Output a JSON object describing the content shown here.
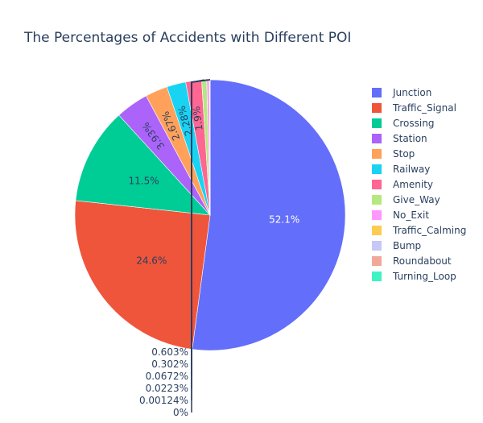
{
  "chart_data": {
    "type": "pie",
    "title": "The Percentages of Accidents with Different POI",
    "legend_position": "right",
    "categories": [
      "Junction",
      "Traffic_Signal",
      "Crossing",
      "Station",
      "Stop",
      "Railway",
      "Amenity",
      "Give_Way",
      "No_Exit",
      "Traffic_Calming",
      "Bump",
      "Roundabout",
      "Turning_Loop"
    ],
    "values": [
      52.1,
      24.6,
      11.5,
      3.93,
      2.67,
      2.28,
      1.9,
      0.603,
      0.302,
      0.0672,
      0.0223,
      0.00124,
      0
    ],
    "labels": [
      "52.1%",
      "24.6%",
      "11.5%",
      "3.93%",
      "2.67%",
      "2.28%",
      "1.9%",
      "0.603%",
      "0.302%",
      "0.0672%",
      "0.0223%",
      "0.00124%",
      "0%"
    ],
    "colors": [
      "#636efa",
      "#EF553B",
      "#00cc96",
      "#ab63fa",
      "#FFA15A",
      "#19d3f3",
      "#FF6692",
      "#B6E880",
      "#FF97FF",
      "#FECB52",
      "#c6c8f6",
      "#f2a898",
      "#3ef4c2"
    ]
  }
}
